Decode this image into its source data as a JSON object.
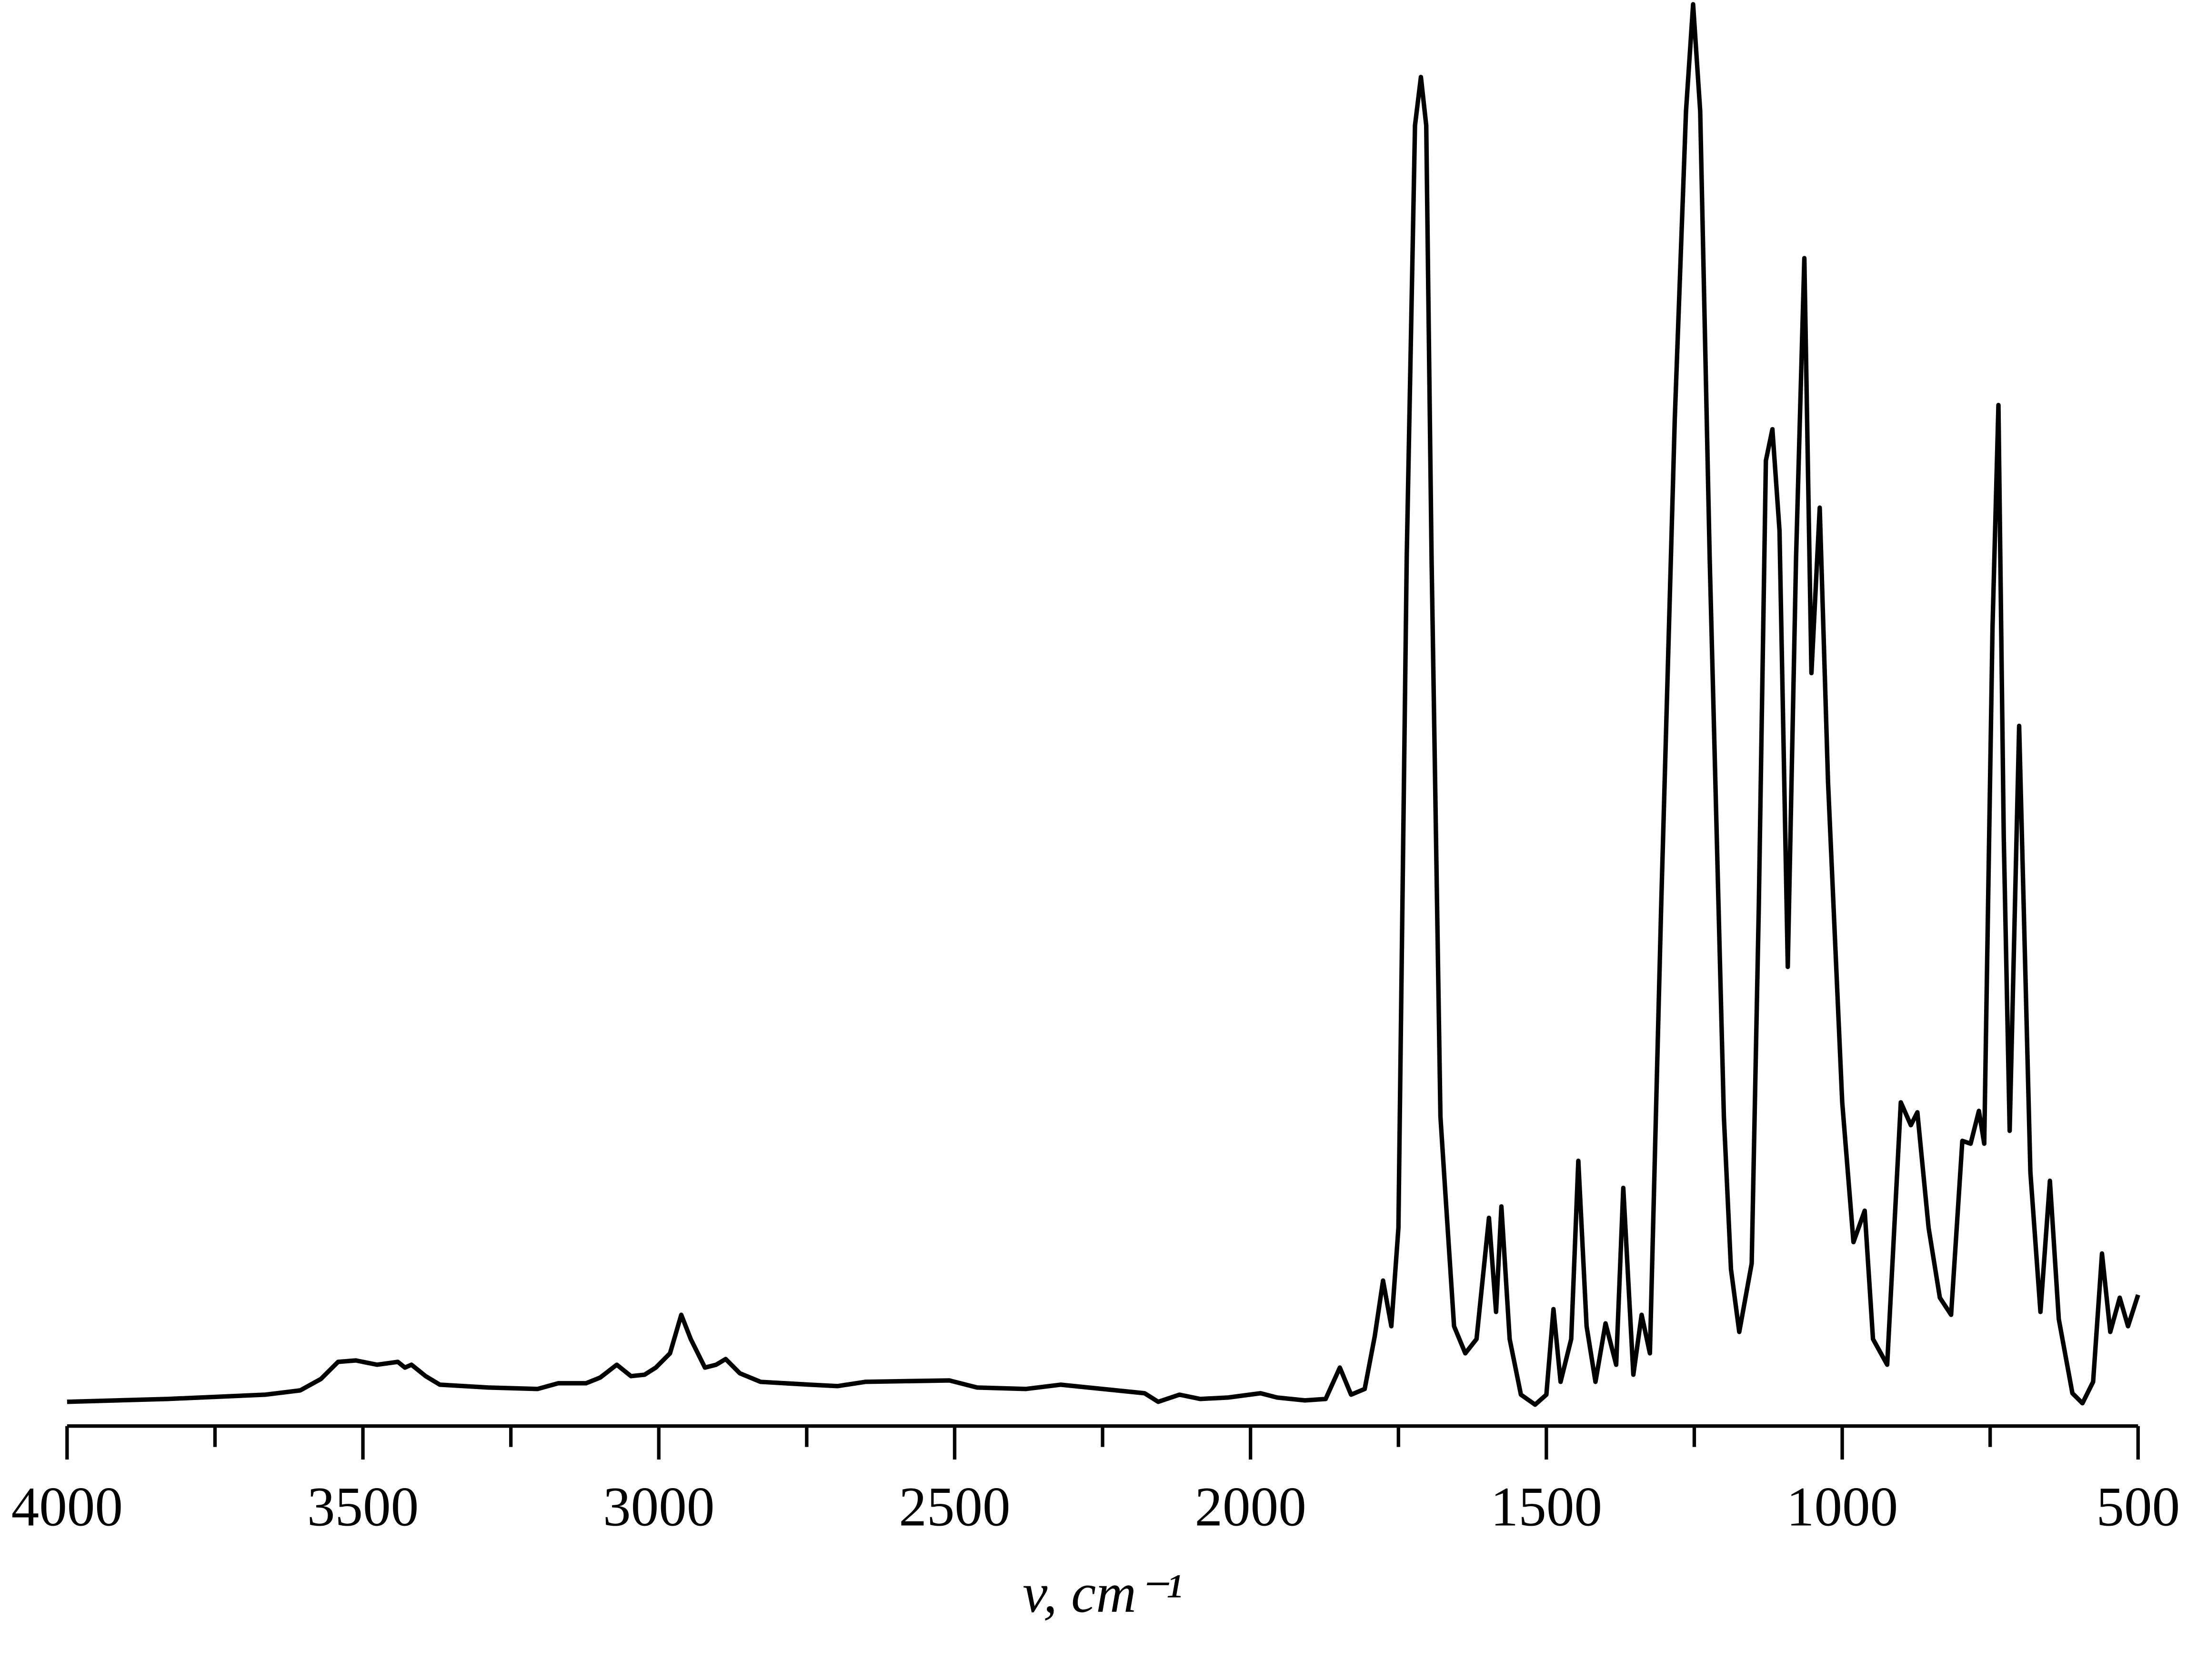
{
  "chart_data": {
    "type": "line",
    "x_label": "v, cm⁻¹",
    "x": [
      4000,
      3830,
      3665,
      3606,
      3571,
      3542,
      3512,
      3476,
      3441,
      3429,
      3418,
      3394,
      3370,
      3288,
      3205,
      3170,
      3123,
      3099,
      3071,
      3047,
      3024,
      3005,
      2981,
      2962,
      2946,
      2922,
      2903,
      2887,
      2863,
      2828,
      2745,
      2698,
      2651,
      2509,
      2462,
      2380,
      2321,
      2250,
      2179,
      2156,
      2120,
      2085,
      2038,
      1983,
      1955,
      1908,
      1873,
      1849,
      1830,
      1807,
      1790,
      1776,
      1762,
      1750,
      1736,
      1722,
      1712,
      1703,
      1694,
      1679,
      1670,
      1656,
      1637,
      1618,
      1597,
      1585,
      1576,
      1562,
      1543,
      1519,
      1500,
      1488,
      1476,
      1458,
      1446,
      1432,
      1417,
      1400,
      1382,
      1370,
      1353,
      1339,
      1325,
      1306,
      1283,
      1264,
      1252,
      1240,
      1224,
      1200,
      1188,
      1174,
      1153,
      1141,
      1129,
      1118,
      1106,
      1092,
      1078,
      1064,
      1052,
      1038,
      1024,
      1000,
      981,
      962,
      948,
      924,
      901,
      884,
      873,
      854,
      835,
      816,
      797,
      783,
      769,
      760,
      746,
      736,
      727,
      717,
      701,
      682,
      665,
      649,
      634,
      611,
      594,
      576,
      561,
      547,
      531,
      517,
      500
    ],
    "values": [
      0.017,
      0.019,
      0.022,
      0.025,
      0.033,
      0.045,
      0.046,
      0.043,
      0.045,
      0.041,
      0.043,
      0.035,
      0.029,
      0.027,
      0.026,
      0.03,
      0.03,
      0.034,
      0.043,
      0.035,
      0.036,
      0.041,
      0.051,
      0.078,
      0.061,
      0.041,
      0.043,
      0.047,
      0.037,
      0.031,
      0.029,
      0.028,
      0.031,
      0.032,
      0.027,
      0.026,
      0.029,
      0.026,
      0.023,
      0.017,
      0.022,
      0.019,
      0.02,
      0.023,
      0.02,
      0.018,
      0.019,
      0.041,
      0.022,
      0.026,
      0.063,
      0.102,
      0.07,
      0.139,
      0.609,
      0.912,
      0.946,
      0.912,
      0.609,
      0.217,
      0.159,
      0.07,
      0.051,
      0.061,
      0.146,
      0.08,
      0.154,
      0.061,
      0.022,
      0.015,
      0.022,
      0.082,
      0.031,
      0.061,
      0.186,
      0.07,
      0.031,
      0.072,
      0.043,
      0.167,
      0.036,
      0.078,
      0.051,
      0.364,
      0.706,
      0.922,
      0.997,
      0.922,
      0.609,
      0.217,
      0.11,
      0.066,
      0.114,
      0.364,
      0.677,
      0.699,
      0.628,
      0.322,
      0.609,
      0.819,
      0.528,
      0.644,
      0.452,
      0.227,
      0.129,
      0.151,
      0.061,
      0.043,
      0.227,
      0.211,
      0.22,
      0.139,
      0.09,
      0.078,
      0.2,
      0.198,
      0.221,
      0.198,
      0.56,
      0.716,
      0.413,
      0.207,
      0.491,
      0.178,
      0.08,
      0.172,
      0.075,
      0.023,
      0.016,
      0.031,
      0.121,
      0.066,
      0.09,
      0.07,
      0.092
    ],
    "color": "#000000",
    "xlim": [
      4000,
      500
    ],
    "ylim": [
      0,
      1
    ],
    "xticks": [
      4000,
      3500,
      3000,
      2500,
      2000,
      1500,
      1000,
      500
    ],
    "xminorticks": [
      3750,
      3250,
      2750,
      2250,
      1750,
      1250,
      750
    ]
  }
}
